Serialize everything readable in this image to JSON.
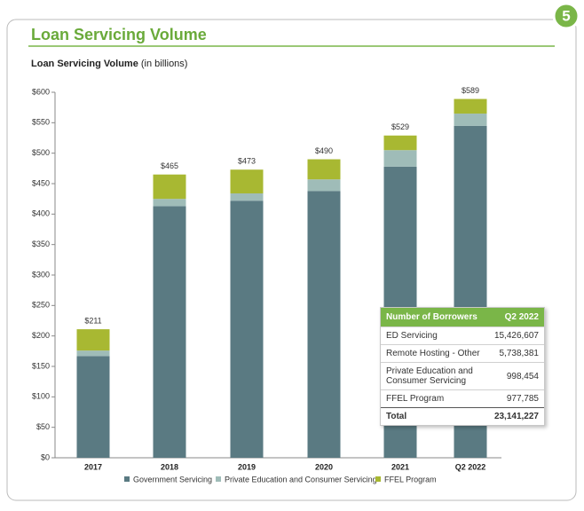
{
  "badge": "5",
  "header": {
    "title": "Loan Servicing Volume"
  },
  "chart_data": {
    "type": "stacked_bar",
    "subtitle": "Loan Servicing Volume",
    "subtitle_note": "(in billions)",
    "categories": [
      "2017",
      "2018",
      "2019",
      "2020",
      "2021",
      "Q2 2022"
    ],
    "series": [
      {
        "name": "Government Servicing",
        "color": "#5a7a82",
        "values": [
          167,
          413,
          422,
          438,
          478,
          545
        ]
      },
      {
        "name": "Private Education and Consumer Servicing",
        "color": "#9fbcb8",
        "values": [
          9,
          12,
          12,
          19,
          27,
          20
        ]
      },
      {
        "name": "FFEL Program",
        "color": "#a8b832",
        "values": [
          35,
          40,
          39,
          33,
          24,
          24
        ]
      }
    ],
    "totals": [
      211,
      465,
      473,
      490,
      529,
      589
    ],
    "value_labels": [
      "$211",
      "$465",
      "$473",
      "$490",
      "$529",
      "$589"
    ],
    "ylim": [
      0,
      600
    ],
    "yticks": [
      {
        "value": 0,
        "label": "$0"
      },
      {
        "value": 50,
        "label": "$50"
      },
      {
        "value": 100,
        "label": "$100"
      },
      {
        "value": 150,
        "label": "$150"
      },
      {
        "value": 200,
        "label": "$200"
      },
      {
        "value": 250,
        "label": "$250"
      },
      {
        "value": 300,
        "label": "$300"
      },
      {
        "value": 350,
        "label": "$350"
      },
      {
        "value": 400,
        "label": "$400"
      },
      {
        "value": 450,
        "label": "$450"
      },
      {
        "value": 500,
        "label": "$500"
      },
      {
        "value": 550,
        "label": "$550"
      },
      {
        "value": 600,
        "label": "$600"
      }
    ]
  },
  "table": {
    "header": [
      "Number of Borrowers",
      "Q2 2022"
    ],
    "rows": [
      [
        "ED Servicing",
        "15,426,607"
      ],
      [
        "Remote Hosting - Other",
        "5,738,381"
      ],
      [
        "Private Education and Consumer Servicing",
        "998,454"
      ],
      [
        "FFEL Program",
        "977,785"
      ]
    ],
    "total": [
      "Total",
      "23,141,227"
    ]
  }
}
